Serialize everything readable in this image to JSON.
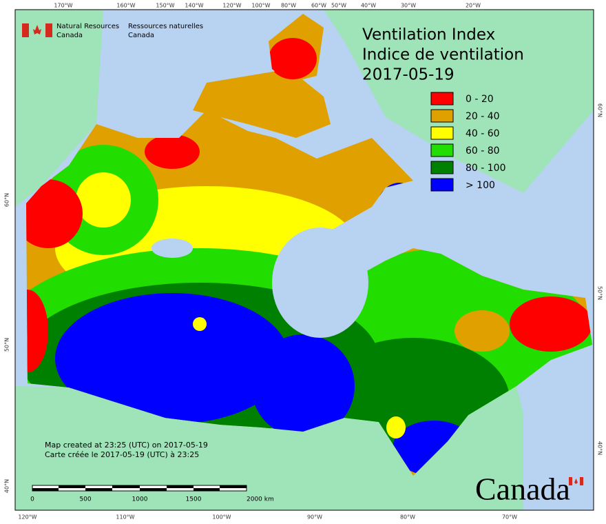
{
  "agency": {
    "en": [
      "Natural Resources",
      "Canada"
    ],
    "fr": [
      "Ressources naturelles",
      "Canada"
    ]
  },
  "title": {
    "lines": [
      "Ventilation Index",
      "Indice de ventilation",
      "2017-05-19"
    ]
  },
  "legend": [
    {
      "label": "0 - 20",
      "color": "#ff0000"
    },
    {
      "label": "20 - 40",
      "color": "#e0a000"
    },
    {
      "label": "40 - 60",
      "color": "#ffff00"
    },
    {
      "label": "60 - 80",
      "color": "#22dd00"
    },
    {
      "label": "80 - 100",
      "color": "#008000"
    },
    {
      "label": "> 100",
      "color": "#0000ff"
    }
  ],
  "notes": [
    "Map created at 23:25 (UTC) on 2017-05-19",
    "Carte créée le 2017-05-19 (UTC) à 23:25"
  ],
  "scale": {
    "labels": [
      "0",
      "500",
      "1000",
      "1500",
      "2000 km"
    ]
  },
  "graticule": {
    "top": [
      "170°W",
      "160°W",
      "150°W",
      "140°W",
      "120°W",
      "100°W",
      "80°W",
      "60°W",
      "50°W",
      "40°W",
      "30°W",
      "20°W"
    ],
    "bottom": [
      "120°W",
      "110°W",
      "100°W",
      "90°W",
      "80°W",
      "70°W"
    ],
    "left": [
      "60°N",
      "50°N",
      "40°N"
    ],
    "right": [
      "60°N",
      "50°N",
      "40°N"
    ]
  },
  "wordmark": "Canada"
}
